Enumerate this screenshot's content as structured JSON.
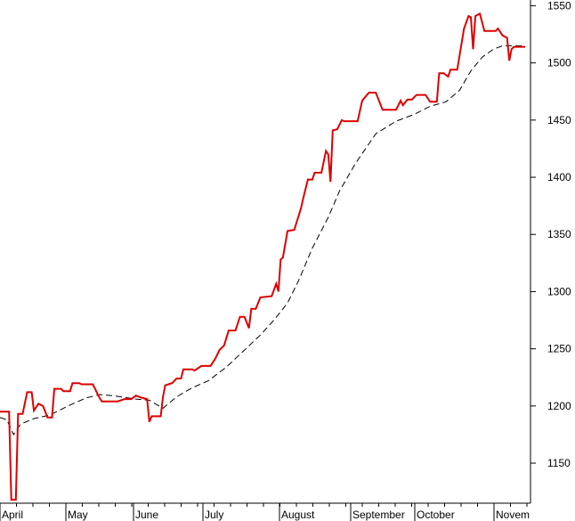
{
  "chart_data": {
    "type": "line",
    "title": "",
    "xlabel": "",
    "ylabel": "",
    "x_axis": {
      "month_labels": [
        "April",
        "May",
        "June",
        "July",
        "August",
        "September",
        "October",
        "Novem"
      ],
      "day_range": [
        0,
        232
      ]
    },
    "y_axis": {
      "position": "right",
      "range": [
        1115,
        1555
      ],
      "ticks": [
        1150,
        1200,
        1250,
        1300,
        1350,
        1400,
        1450,
        1500,
        1550
      ]
    },
    "grid": false,
    "series": [
      {
        "style": "solid",
        "color": "#dd0000",
        "points": [
          [
            0,
            1195
          ],
          [
            4,
            1195
          ],
          [
            5,
            1118
          ],
          [
            7,
            1118
          ],
          [
            8,
            1193
          ],
          [
            10,
            1193
          ],
          [
            12,
            1212
          ],
          [
            14,
            1212
          ],
          [
            15,
            1196
          ],
          [
            17,
            1202
          ],
          [
            19,
            1200
          ],
          [
            21,
            1190
          ],
          [
            23,
            1190
          ],
          [
            24,
            1215
          ],
          [
            27,
            1215
          ],
          [
            28,
            1213
          ],
          [
            31,
            1213
          ],
          [
            32,
            1220
          ],
          [
            35,
            1220
          ],
          [
            36,
            1219
          ],
          [
            41,
            1219
          ],
          [
            44,
            1207
          ],
          [
            45,
            1204
          ],
          [
            52,
            1204
          ],
          [
            55,
            1206
          ],
          [
            58,
            1206
          ],
          [
            60,
            1209
          ],
          [
            63,
            1207
          ],
          [
            65,
            1206
          ],
          [
            66,
            1186
          ],
          [
            67,
            1191
          ],
          [
            71,
            1191
          ],
          [
            72,
            1208
          ],
          [
            73,
            1218
          ],
          [
            76,
            1220
          ],
          [
            78,
            1224
          ],
          [
            80,
            1224
          ],
          [
            81,
            1232
          ],
          [
            85,
            1232
          ],
          [
            86,
            1231
          ],
          [
            89,
            1235
          ],
          [
            93,
            1235
          ],
          [
            95,
            1241
          ],
          [
            97,
            1249
          ],
          [
            99,
            1253
          ],
          [
            101,
            1266
          ],
          [
            104,
            1266
          ],
          [
            106,
            1278
          ],
          [
            108,
            1278
          ],
          [
            110,
            1268
          ],
          [
            111,
            1285
          ],
          [
            113,
            1285
          ],
          [
            115,
            1295
          ],
          [
            120,
            1296
          ],
          [
            122,
            1307
          ],
          [
            123,
            1300
          ],
          [
            124,
            1328
          ],
          [
            125,
            1330
          ],
          [
            127,
            1353
          ],
          [
            130,
            1354
          ],
          [
            133,
            1373
          ],
          [
            134,
            1382
          ],
          [
            136,
            1398
          ],
          [
            138,
            1398
          ],
          [
            139,
            1404
          ],
          [
            142,
            1404
          ],
          [
            144,
            1423
          ],
          [
            145,
            1420
          ],
          [
            146,
            1396
          ],
          [
            147,
            1441
          ],
          [
            149,
            1442
          ],
          [
            151,
            1450
          ],
          [
            152,
            1449
          ],
          [
            158,
            1449
          ],
          [
            160,
            1467
          ],
          [
            163,
            1474
          ],
          [
            166,
            1474
          ],
          [
            169,
            1459
          ],
          [
            175,
            1459
          ],
          [
            177,
            1467
          ],
          [
            178,
            1463
          ],
          [
            180,
            1468
          ],
          [
            182,
            1468
          ],
          [
            184,
            1472
          ],
          [
            188,
            1472
          ],
          [
            190,
            1466
          ],
          [
            193,
            1466
          ],
          [
            194,
            1491
          ],
          [
            196,
            1491
          ],
          [
            198,
            1488
          ],
          [
            199,
            1494
          ],
          [
            202,
            1494
          ],
          [
            205,
            1530
          ],
          [
            207,
            1541
          ],
          [
            208,
            1540
          ],
          [
            209,
            1512
          ],
          [
            210,
            1541
          ],
          [
            212,
            1543
          ],
          [
            214,
            1528
          ],
          [
            219,
            1528
          ],
          [
            220,
            1530
          ],
          [
            222,
            1524
          ],
          [
            224,
            1522
          ],
          [
            225,
            1502
          ],
          [
            226,
            1512
          ],
          [
            227,
            1514
          ],
          [
            232,
            1514
          ]
        ]
      },
      {
        "style": "dashed",
        "color": "#000000",
        "points": [
          [
            0,
            1190
          ],
          [
            3,
            1188
          ],
          [
            6,
            1175
          ],
          [
            9,
            1184
          ],
          [
            15,
            1189
          ],
          [
            22,
            1192
          ],
          [
            30,
            1200
          ],
          [
            38,
            1207
          ],
          [
            44,
            1210
          ],
          [
            50,
            1209
          ],
          [
            60,
            1206
          ],
          [
            66,
            1205
          ],
          [
            72,
            1198
          ],
          [
            78,
            1208
          ],
          [
            85,
            1216
          ],
          [
            92,
            1222
          ],
          [
            100,
            1234
          ],
          [
            107,
            1247
          ],
          [
            115,
            1262
          ],
          [
            121,
            1275
          ],
          [
            127,
            1290
          ],
          [
            132,
            1310
          ],
          [
            138,
            1338
          ],
          [
            145,
            1365
          ],
          [
            150,
            1388
          ],
          [
            157,
            1412
          ],
          [
            166,
            1438
          ],
          [
            175,
            1449
          ],
          [
            183,
            1455
          ],
          [
            190,
            1462
          ],
          [
            197,
            1466
          ],
          [
            203,
            1476
          ],
          [
            208,
            1493
          ],
          [
            213,
            1505
          ],
          [
            218,
            1512
          ],
          [
            222,
            1515
          ],
          [
            232,
            1515
          ]
        ]
      }
    ]
  }
}
